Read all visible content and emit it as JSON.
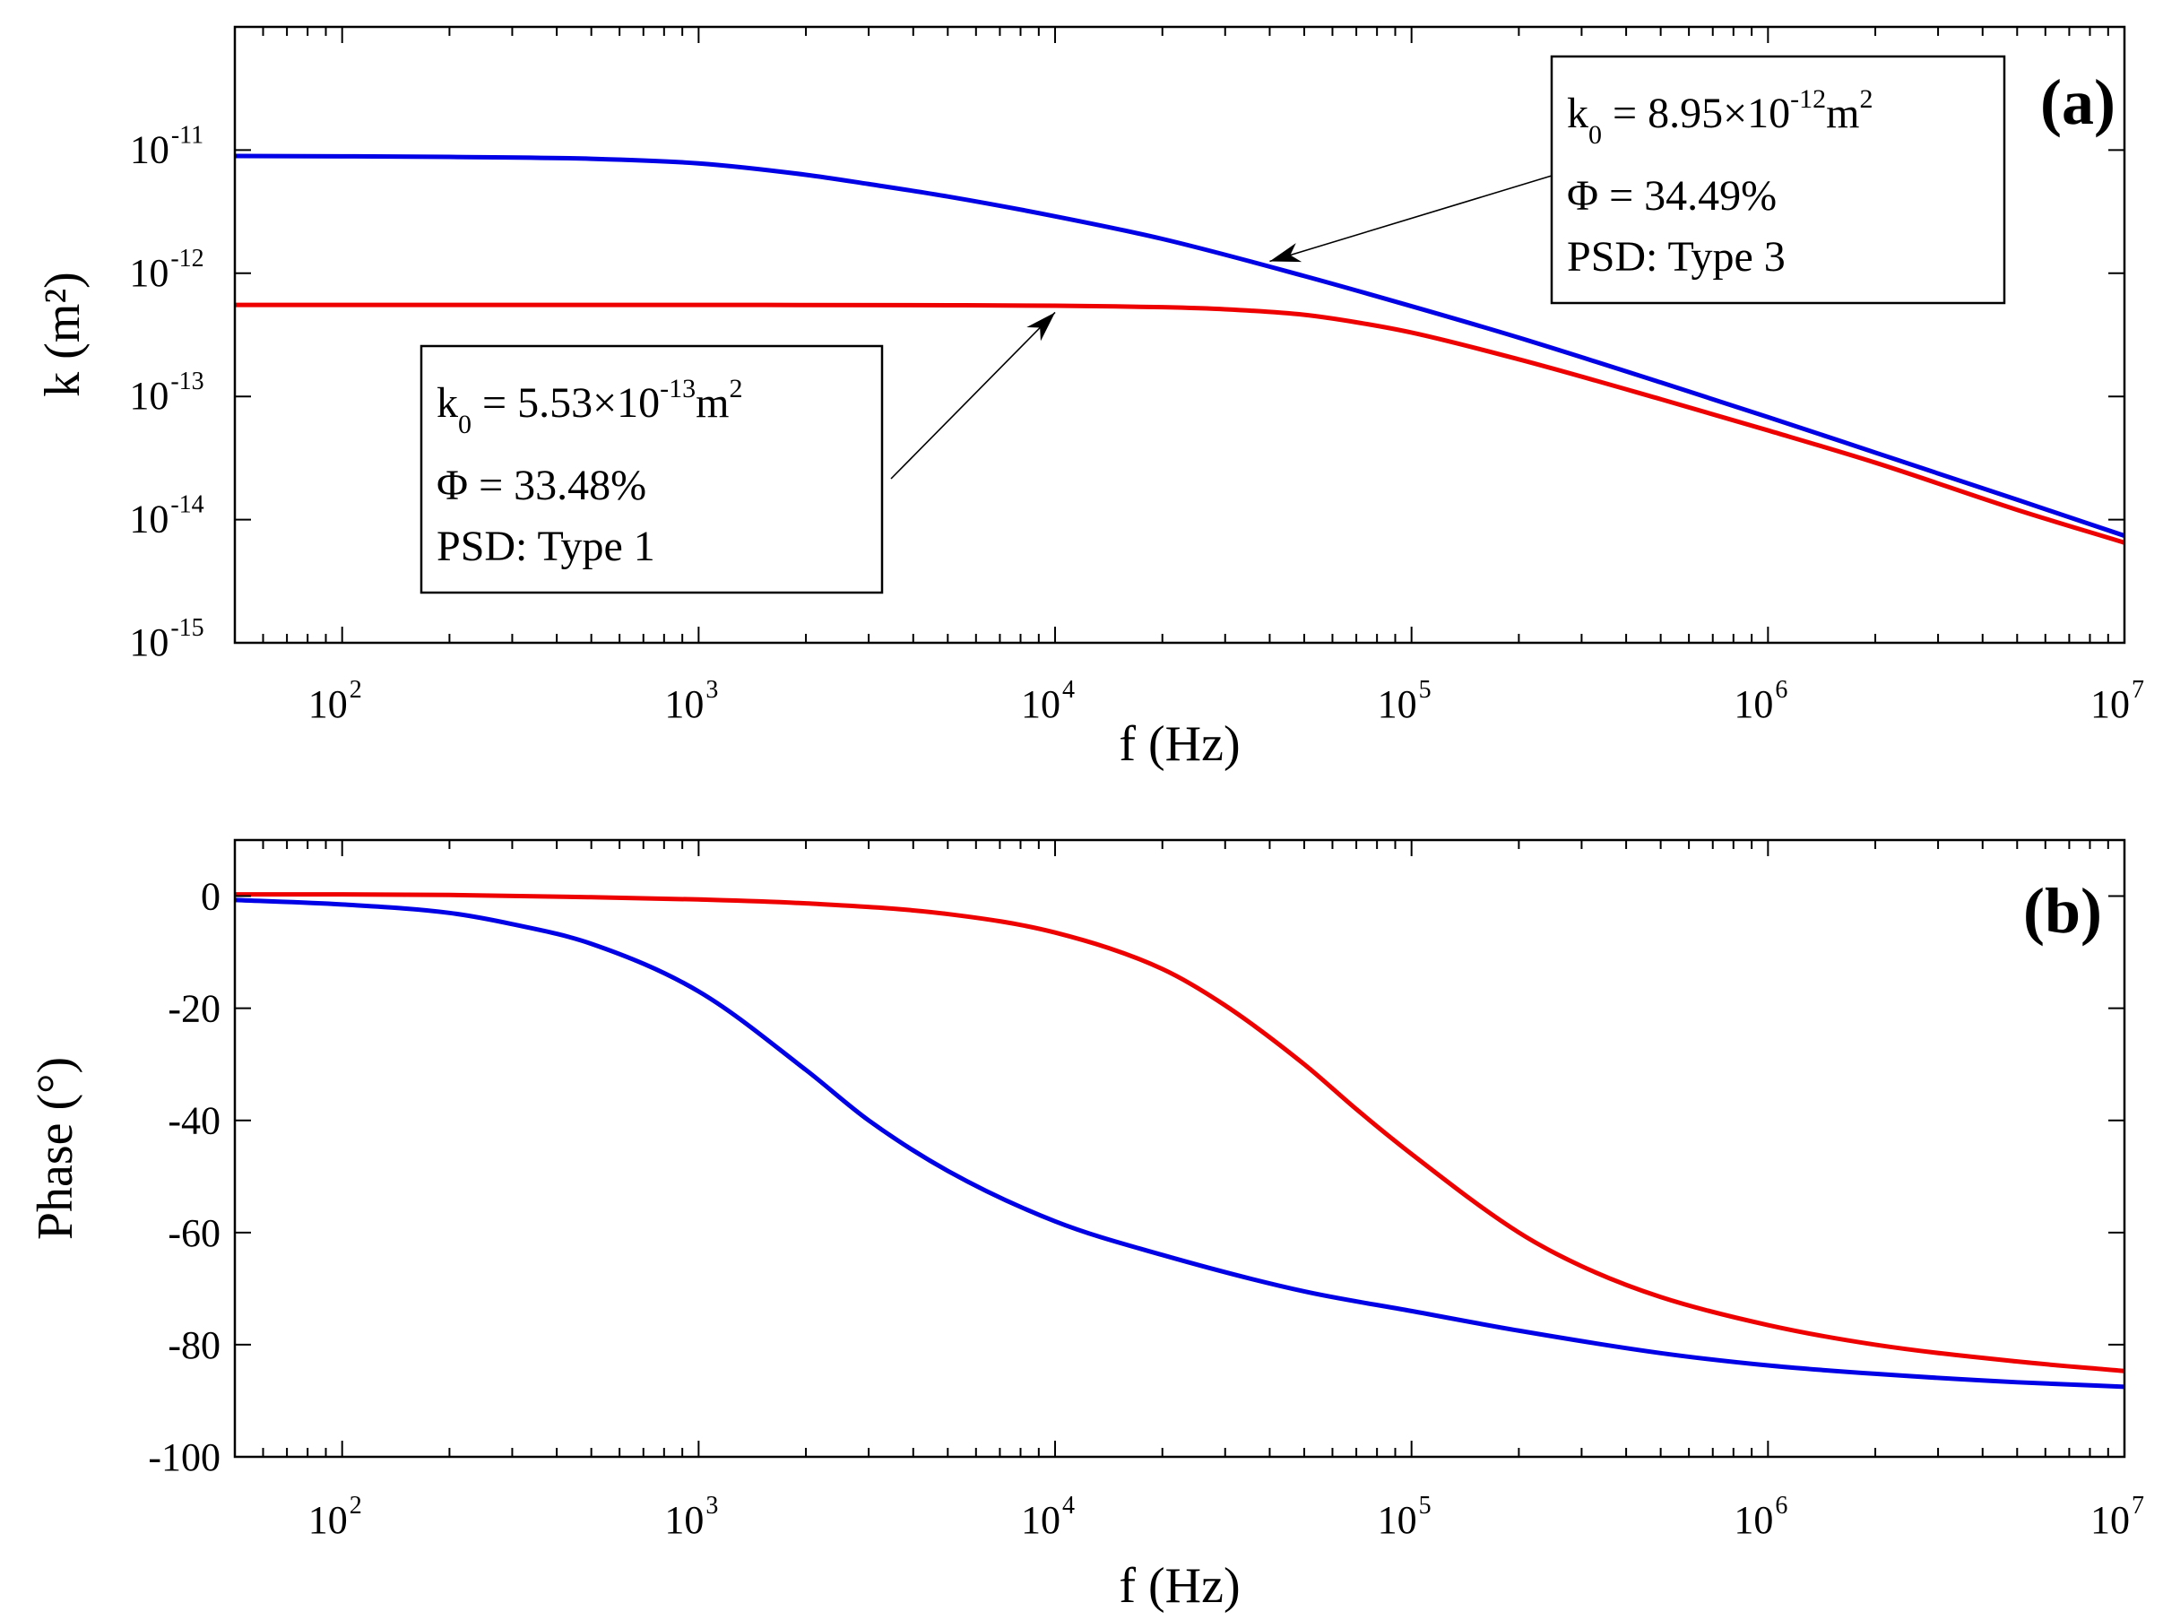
{
  "chart_data": [
    {
      "type": "line",
      "panel": "(a)",
      "xscale": "log",
      "yscale": "log",
      "xlabel": "f (Hz)",
      "ylabel": "k (m²)",
      "xlim": [
        50,
        10000000
      ],
      "ylim": [
        1e-15,
        1e-10
      ],
      "xticks": [
        {
          "base": "10",
          "exp": "2",
          "value": 100
        },
        {
          "base": "10",
          "exp": "3",
          "value": 1000
        },
        {
          "base": "10",
          "exp": "4",
          "value": 10000
        },
        {
          "base": "10",
          "exp": "5",
          "value": 100000
        },
        {
          "base": "10",
          "exp": "6",
          "value": 1000000
        },
        {
          "base": "10",
          "exp": "7",
          "value": 10000000
        }
      ],
      "yticks": [
        {
          "base": "10",
          "exp": "-15",
          "value": 1e-15
        },
        {
          "base": "10",
          "exp": "-14",
          "value": 1e-14
        },
        {
          "base": "10",
          "exp": "-13",
          "value": 1e-13
        },
        {
          "base": "10",
          "exp": "-12",
          "value": 1e-12
        },
        {
          "base": "10",
          "exp": "-11",
          "value": 1e-11
        }
      ],
      "series": [
        {
          "name": "PSD Type 3",
          "color": "#0000e6",
          "x": [
            50,
            100,
            200,
            500,
            1000,
            2000,
            3000,
            5000,
            10000,
            20000,
            50000,
            100000,
            200000,
            500000,
            1000000,
            2000000,
            5000000,
            10000000
          ],
          "y": [
            8.95e-12,
            8.9e-12,
            8.8e-12,
            8.5e-12,
            7.8e-12,
            6.3e-12,
            5.3e-12,
            4.2e-12,
            2.9e-12,
            1.9e-12,
            9.5e-13,
            5.4e-13,
            3e-13,
            1.3e-13,
            6.8e-14,
            3.5e-14,
            1.45e-14,
            7.4e-15
          ]
        },
        {
          "name": "PSD Type 1",
          "color": "#ee0000",
          "x": [
            50,
            100,
            1000,
            5000,
            10000,
            20000,
            30000,
            50000,
            70000,
            100000,
            200000,
            500000,
            1000000,
            2000000,
            5000000,
            10000000
          ],
          "y": [
            5.53e-13,
            5.53e-13,
            5.53e-13,
            5.5e-13,
            5.45e-13,
            5.3e-13,
            5.1e-13,
            4.6e-13,
            4e-13,
            3.3e-13,
            2e-13,
            9.5e-14,
            5.3e-14,
            2.9e-14,
            1.2e-14,
            6.5e-15
          ]
        }
      ],
      "annotations": [
        {
          "k0_prefix": "k",
          "k0_sub": "0",
          "k0_mid": " = 8.95×10",
          "k0_exp": "-12",
          "k0_unit": "m",
          "k0_unit_exp": "2",
          "phi": "Φ  = 34.49%",
          "psd": "PSD: Type 3",
          "arrow_to": {
            "x": 40000,
            "y": 1.25e-12
          }
        },
        {
          "k0_prefix": "k",
          "k0_sub": "0",
          "k0_mid": " = 5.53×10",
          "k0_exp": "-13",
          "k0_unit": "m",
          "k0_unit_exp": "2",
          "phi": "Φ  = 33.48%",
          "psd": "PSD: Type 1",
          "arrow_to": {
            "x": 10000,
            "y": 5.5e-13
          }
        }
      ]
    },
    {
      "type": "line",
      "panel": "(b)",
      "xscale": "log",
      "yscale": "linear",
      "xlabel": "f (Hz)",
      "ylabel": "Phase (°)",
      "xlim": [
        50,
        10000000
      ],
      "ylim": [
        -100,
        10
      ],
      "xticks": [
        {
          "base": "10",
          "exp": "2",
          "value": 100
        },
        {
          "base": "10",
          "exp": "3",
          "value": 1000
        },
        {
          "base": "10",
          "exp": "4",
          "value": 10000
        },
        {
          "base": "10",
          "exp": "5",
          "value": 100000
        },
        {
          "base": "10",
          "exp": "6",
          "value": 1000000
        },
        {
          "base": "10",
          "exp": "7",
          "value": 10000000
        }
      ],
      "yticks": [
        "0",
        "-20",
        "-40",
        "-60",
        "-80",
        "-100"
      ],
      "series": [
        {
          "name": "PSD Type 3",
          "color": "#0000e6",
          "x": [
            50,
            100,
            200,
            300,
            500,
            1000,
            2000,
            3000,
            5000,
            10000,
            20000,
            50000,
            100000,
            200000,
            500000,
            1000000,
            2000000,
            5000000,
            10000000
          ],
          "y": [
            -0.7,
            -1.5,
            -3,
            -5,
            -8.5,
            -17,
            -31,
            -40,
            -49,
            -58,
            -64,
            -70.5,
            -74,
            -77.5,
            -81.5,
            -83.7,
            -85.2,
            -86.7,
            -87.5
          ]
        },
        {
          "name": "PSD Type 1",
          "color": "#ee0000",
          "x": [
            50,
            100,
            200,
            500,
            1000,
            2000,
            5000,
            10000,
            20000,
            30000,
            50000,
            70000,
            100000,
            200000,
            300000,
            500000,
            1000000,
            2000000,
            5000000,
            10000000
          ],
          "y": [
            0.3,
            0.3,
            0.2,
            -0.2,
            -0.6,
            -1.3,
            -3.2,
            -6.5,
            -13,
            -19.5,
            -30,
            -38,
            -46,
            -60,
            -66,
            -71.5,
            -76.5,
            -80,
            -83,
            -84.7
          ]
        }
      ]
    }
  ]
}
